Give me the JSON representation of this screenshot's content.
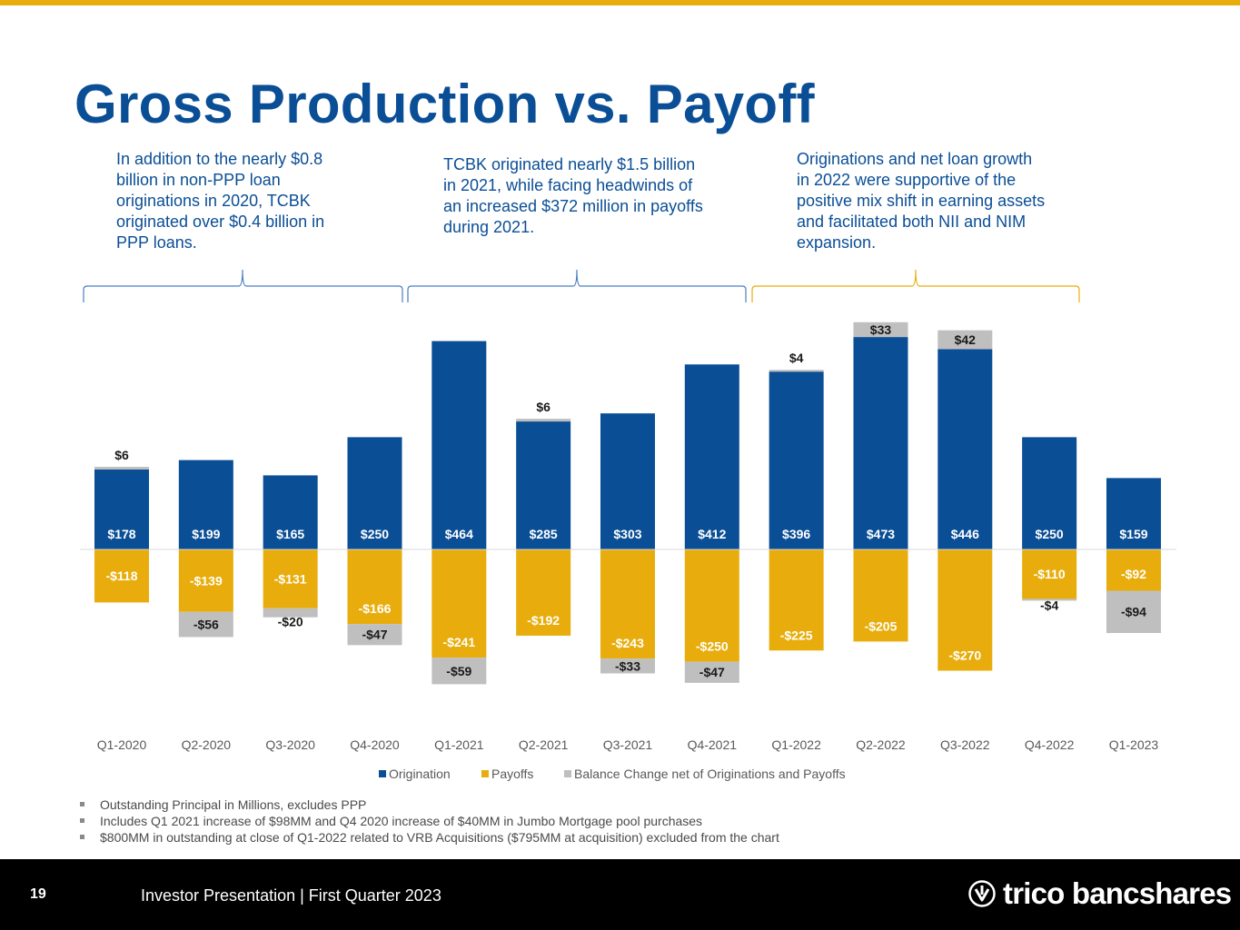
{
  "slide": {
    "title": "Gross Production vs. Payoff",
    "callouts": [
      "In addition to the nearly $0.8 billion in non-PPP loan originations in 2020, TCBK originated over $0.4 billion in PPP loans.",
      "TCBK originated nearly $1.5 billion in 2021, while facing headwinds of an increased $372 million in payoffs during 2021.",
      "Originations and net loan growth in 2022 were supportive of the positive mix shift in earning assets and facilitated both NII and NIM expansion."
    ],
    "notes": [
      "Outstanding Principal in Millions, excludes PPP",
      "Includes Q1 2021 increase of $98MM and Q4 2020 increase of $40MM in Jumbo Mortgage pool purchases",
      "$800MM in outstanding at close of Q1-2022 related to VRB Acquisitions ($795MM at acquisition) excluded from the chart"
    ]
  },
  "footer": {
    "page_number": "19",
    "text": "Investor Presentation | First Quarter 2023",
    "brand": "trico bancshares",
    "brand_icon": "trico-logo-icon"
  },
  "colors": {
    "accent": "#e8ad0c",
    "title": "#0a4e96",
    "origination": "#0a4e96",
    "payoffs": "#e8ad0c",
    "balance": "#bfbfbf",
    "bracket_blue": "#4a7fc1",
    "bracket_gold": "#e8ad0c"
  },
  "chart_data": {
    "type": "bar",
    "stacked": true,
    "title": "",
    "xlabel": "",
    "ylabel": "",
    "grid": false,
    "legend_position": "bottom",
    "categories": [
      "Q1-2020",
      "Q2-2020",
      "Q3-2020",
      "Q4-2020",
      "Q1-2021",
      "Q2-2021",
      "Q3-2021",
      "Q4-2021",
      "Q1-2022",
      "Q2-2022",
      "Q3-2022",
      "Q4-2022",
      "Q1-2023"
    ],
    "series": [
      {
        "name": "Origination",
        "values": [
          178,
          199,
          165,
          250,
          464,
          285,
          303,
          412,
          396,
          473,
          446,
          250,
          159
        ]
      },
      {
        "name": "Payoffs",
        "values": [
          -118,
          -139,
          -131,
          -166,
          -241,
          -192,
          -243,
          -250,
          -225,
          -205,
          -270,
          -110,
          -92
        ]
      },
      {
        "name": "Balance Change net of Originations and Payoffs",
        "values": [
          6,
          -56,
          -20,
          -47,
          -59,
          6,
          -33,
          -47,
          4,
          33,
          42,
          -4,
          -94
        ]
      }
    ],
    "origination_labels": [
      "$178",
      "$199",
      "$165",
      "$250",
      "$464",
      "$285",
      "$303",
      "$412",
      "$396",
      "$473",
      "$446",
      "$250",
      "$159"
    ],
    "payoff_labels": [
      "-$118",
      "-$139",
      "-$131",
      "-$166",
      "-$241",
      "-$192",
      "-$243",
      "-$250",
      "-$225",
      "-$205",
      "-$270",
      "-$110",
      "-$92"
    ],
    "balance_labels": [
      "$6",
      "-$56",
      "-$20",
      "-$47",
      "-$59",
      "$6",
      "-$33",
      "-$47",
      "$4",
      "$33",
      "$42",
      "-$4",
      "-$94"
    ]
  }
}
